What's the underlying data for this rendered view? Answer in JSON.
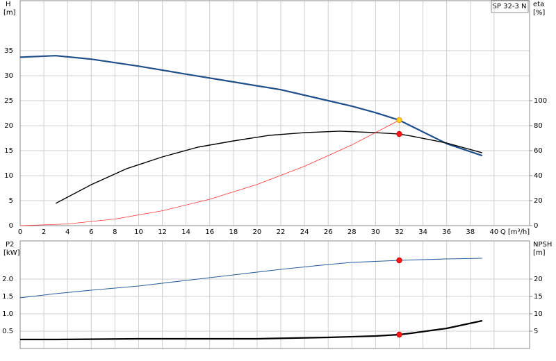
{
  "badge": "SP 32-3 N",
  "chart_data": [
    {
      "type": "line",
      "ylabel": "H",
      "yunit": "[m]",
      "y2label": "eta",
      "y2unit": "[%]",
      "xlabel": "Q [m³/h]",
      "xlim": [
        0,
        43
      ],
      "xticks": [
        0,
        2,
        4,
        6,
        8,
        10,
        12,
        14,
        16,
        18,
        20,
        22,
        24,
        26,
        28,
        30,
        32,
        34,
        36,
        38,
        40
      ],
      "ylim": [
        0,
        45
      ],
      "yticks": [
        0,
        5,
        10,
        15,
        20,
        25,
        30,
        35
      ],
      "y2lim": [
        0,
        180
      ],
      "y2ticks": [
        0,
        20,
        40,
        60,
        80,
        100
      ],
      "grid": true,
      "series": [
        {
          "color": "#1f4e8c",
          "width": 2.2,
          "x": [
            0,
            3,
            6,
            10,
            14,
            18,
            22,
            26,
            28,
            30,
            32,
            34,
            36,
            39
          ],
          "values": [
            33.7,
            34,
            33.3,
            31.9,
            30.3,
            28.75,
            27.2,
            25,
            23.9,
            22.6,
            21.1,
            18.75,
            16.4,
            14
          ]
        },
        {
          "color": "#000000",
          "width": 1.4,
          "axis": "y2",
          "x": [
            3,
            6,
            9,
            12,
            15,
            18,
            21,
            24,
            27,
            30,
            32,
            33,
            36,
            39
          ],
          "values": [
            17.8,
            32.8,
            45.6,
            55,
            62.8,
            67.8,
            72.2,
            74.4,
            75.6,
            74.4,
            73.3,
            71.7,
            66.1,
            58.3
          ]
        },
        {
          "color": "#ff3030",
          "width": 0.8,
          "x": [
            0,
            4,
            8,
            12,
            16,
            20,
            24,
            28,
            32
          ],
          "values": [
            0,
            0.33,
            1.32,
            2.97,
            5.28,
            8.24,
            11.87,
            16.15,
            21.1
          ]
        },
        {
          "color": "#ffd21f",
          "marker": true,
          "x": [
            32
          ],
          "values": [
            21.1
          ]
        },
        {
          "color": "#ff1a1a",
          "marker": true,
          "axis": "y2",
          "x": [
            32
          ],
          "values": [
            73.3
          ]
        }
      ]
    },
    {
      "type": "line",
      "ylabel": "P2",
      "yunit": "[kW]",
      "y2label": "NPSH",
      "y2unit": "[m]",
      "xlim": [
        0,
        43
      ],
      "xticks": [
        0,
        2,
        4,
        6,
        8,
        10,
        12,
        14,
        16,
        18,
        20,
        22,
        24,
        26,
        28,
        30,
        32,
        34,
        36,
        38,
        40
      ],
      "ylim": [
        0,
        3.1
      ],
      "yticks": [
        0.5,
        {
          "value": 1,
          "label": "1.0"
        },
        1.5,
        {
          "value": 2,
          "label": "2.0"
        }
      ],
      "y2lim": [
        0,
        31
      ],
      "y2ticks": [
        5,
        10,
        15,
        20
      ],
      "grid": true,
      "series": [
        {
          "color": "#2b5f9e",
          "width": 1.1,
          "x": [
            0,
            3,
            6,
            10,
            14,
            18,
            22,
            26,
            28,
            32,
            36,
            39
          ],
          "values": [
            1.46,
            1.58,
            1.68,
            1.8,
            1.96,
            2.12,
            2.28,
            2.42,
            2.48,
            2.54,
            2.58,
            2.6
          ]
        },
        {
          "color": "#000000",
          "width": 2.2,
          "axis": "y2",
          "x": [
            0,
            3,
            10,
            20,
            26,
            30,
            32,
            33,
            36,
            39
          ],
          "values": [
            2.6,
            2.6,
            2.8,
            2.8,
            3.2,
            3.6,
            4,
            4.4,
            5.8,
            8
          ]
        },
        {
          "color": "#ff1a1a",
          "marker": true,
          "x": [
            32
          ],
          "values": [
            2.54
          ]
        },
        {
          "color": "#ff1a1a",
          "marker": true,
          "axis": "y2",
          "x": [
            32
          ],
          "values": [
            4
          ]
        }
      ]
    }
  ]
}
